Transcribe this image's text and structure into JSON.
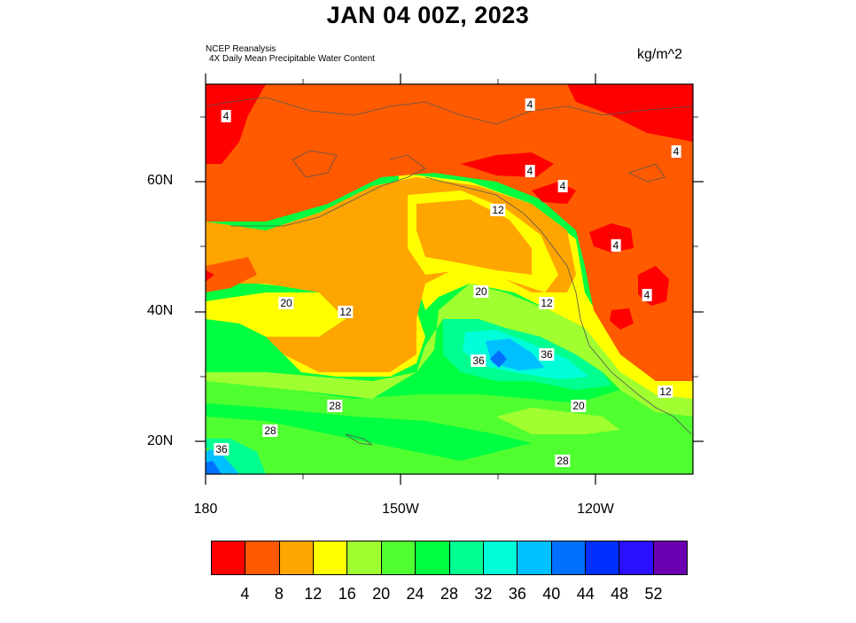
{
  "title": "JAN 04 00Z, 2023",
  "source": {
    "line1": "NCEP Reanalysis",
    "line2": "4X Daily Mean  Precipitable Water Content"
  },
  "units": "kg/m^2",
  "axes": {
    "lat_labels": [
      "60N",
      "40N",
      "20N"
    ],
    "lon_labels": [
      "180",
      "150W",
      "120W"
    ]
  },
  "contour_labels": [
    "4",
    "4",
    "4",
    "4",
    "4",
    "4",
    "4",
    "12",
    "20",
    "12",
    "20",
    "12",
    "36",
    "36",
    "28",
    "20",
    "12",
    "28",
    "36",
    "28"
  ],
  "colorbar": {
    "labels": [
      "4",
      "8",
      "12",
      "16",
      "20",
      "24",
      "28",
      "32",
      "36",
      "40",
      "44",
      "48",
      "52"
    ],
    "colors": [
      "#ff0000",
      "#ff5a00",
      "#ffa500",
      "#ffff00",
      "#a0ff30",
      "#50ff30",
      "#00ff40",
      "#00ff90",
      "#00ffd8",
      "#00c0ff",
      "#0070ff",
      "#0030ff",
      "#2a10ff",
      "#6a00b0"
    ]
  }
}
